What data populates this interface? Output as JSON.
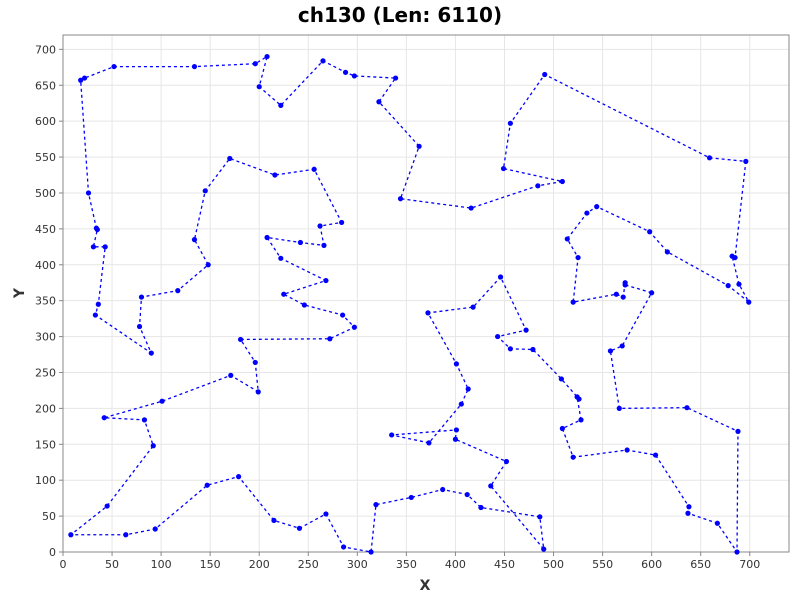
{
  "chart_data": {
    "type": "line",
    "title": "ch130 (Len: 6110)",
    "xlabel": "X",
    "ylabel": "Y",
    "xlim": [
      0,
      740
    ],
    "ylim": [
      0,
      720
    ],
    "xticks": [
      0,
      50,
      100,
      150,
      200,
      250,
      300,
      350,
      400,
      450,
      500,
      550,
      600,
      650,
      700
    ],
    "yticks": [
      0,
      50,
      100,
      150,
      200,
      250,
      300,
      350,
      400,
      450,
      500,
      550,
      600,
      650,
      700
    ],
    "grid": true,
    "line_style": "dashed",
    "color": "#0000ff",
    "series": [
      {
        "closed": true,
        "points": [
          [
            18,
            657
          ],
          [
            22,
            660
          ],
          [
            52,
            676
          ],
          [
            134,
            676
          ],
          [
            196,
            680
          ],
          [
            208,
            690
          ],
          [
            200,
            648
          ],
          [
            222,
            622
          ],
          [
            265,
            684
          ],
          [
            288,
            668
          ],
          [
            297,
            663
          ],
          [
            339,
            660
          ],
          [
            322,
            627
          ],
          [
            363,
            565
          ],
          [
            344,
            492
          ],
          [
            416,
            479
          ],
          [
            484,
            510
          ],
          [
            509,
            516
          ],
          [
            449,
            534
          ],
          [
            456,
            597
          ],
          [
            491,
            665
          ],
          [
            659,
            549
          ],
          [
            696,
            544
          ],
          [
            685,
            410
          ],
          [
            682,
            412
          ],
          [
            689,
            373
          ],
          [
            699,
            348
          ],
          [
            678,
            371
          ],
          [
            616,
            418
          ],
          [
            598,
            446
          ],
          [
            544,
            481
          ],
          [
            534,
            472
          ],
          [
            514,
            436
          ],
          [
            525,
            410
          ],
          [
            520,
            348
          ],
          [
            564,
            359
          ],
          [
            571,
            355
          ],
          [
            573,
            375
          ],
          [
            573,
            372
          ],
          [
            600,
            361
          ],
          [
            570,
            287
          ],
          [
            558,
            280
          ],
          [
            567,
            200
          ],
          [
            636,
            201
          ],
          [
            688,
            168
          ],
          [
            687,
            0
          ],
          [
            667,
            40
          ],
          [
            637,
            54
          ],
          [
            638,
            63
          ],
          [
            604,
            135
          ],
          [
            575,
            142
          ],
          [
            520,
            132
          ],
          [
            509,
            172
          ],
          [
            528,
            184
          ],
          [
            524,
            216
          ],
          [
            526,
            213
          ],
          [
            508,
            241
          ],
          [
            479,
            282
          ],
          [
            456,
            283
          ],
          [
            443,
            300
          ],
          [
            472,
            309
          ],
          [
            446,
            383
          ],
          [
            418,
            341
          ],
          [
            372,
            333
          ],
          [
            401,
            262
          ],
          [
            413,
            227
          ],
          [
            406,
            206
          ],
          [
            373,
            152
          ],
          [
            335,
            163
          ],
          [
            401,
            170
          ],
          [
            400,
            157
          ],
          [
            452,
            126
          ],
          [
            436,
            92
          ],
          [
            490,
            4
          ],
          [
            486,
            49
          ],
          [
            426,
            62
          ],
          [
            412,
            80
          ],
          [
            387,
            87
          ],
          [
            355,
            76
          ],
          [
            319,
            66
          ],
          [
            314,
            0
          ],
          [
            286,
            7
          ],
          [
            268,
            53
          ],
          [
            241,
            33
          ],
          [
            215,
            44
          ],
          [
            179,
            105
          ],
          [
            147,
            93
          ],
          [
            94,
            32
          ],
          [
            64,
            24
          ],
          [
            8,
            24
          ],
          [
            45,
            64
          ],
          [
            92,
            148
          ],
          [
            83,
            184
          ],
          [
            42,
            187
          ],
          [
            101,
            210
          ],
          [
            171,
            246
          ],
          [
            199,
            223
          ],
          [
            196,
            264
          ],
          [
            181,
            296
          ],
          [
            272,
            297
          ],
          [
            297,
            313
          ],
          [
            285,
            330
          ],
          [
            246,
            344
          ],
          [
            225,
            359
          ],
          [
            268,
            378
          ],
          [
            222,
            409
          ],
          [
            208,
            438
          ],
          [
            242,
            431
          ],
          [
            266,
            427
          ],
          [
            262,
            454
          ],
          [
            284,
            459
          ],
          [
            256,
            533
          ],
          [
            216,
            525
          ],
          [
            170,
            548
          ],
          [
            145,
            503
          ],
          [
            134,
            435
          ],
          [
            148,
            400
          ],
          [
            117,
            364
          ],
          [
            80,
            355
          ],
          [
            78,
            314
          ],
          [
            90,
            277
          ],
          [
            33,
            330
          ],
          [
            36,
            345
          ],
          [
            43,
            425
          ],
          [
            31,
            425
          ],
          [
            35,
            449
          ],
          [
            34,
            451
          ],
          [
            26,
            500
          ]
        ]
      }
    ]
  }
}
